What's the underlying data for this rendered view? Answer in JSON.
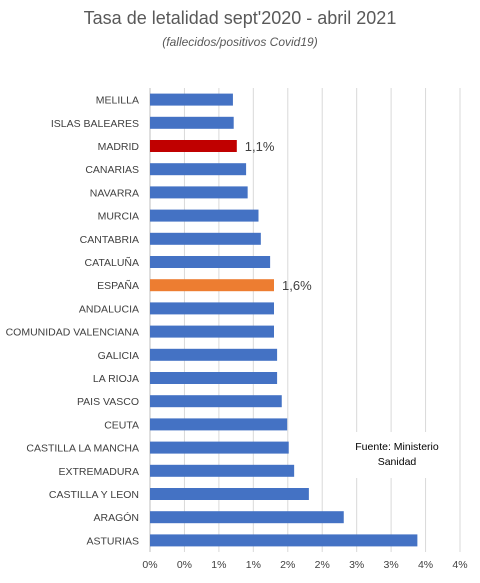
{
  "title": "Tasa de letalidad sept'2020 - abril 2021",
  "subtitle": "(fallecidos/positivos  Covid19)",
  "source": [
    "Fuente: Ministerio",
    "Sanidad"
  ],
  "colors": {
    "default": "#4472C4",
    "madrid": "#C00000",
    "espana": "#ED7D31",
    "grid": "#D9D9D9"
  },
  "chart_data": {
    "type": "bar",
    "orientation": "horizontal",
    "title": "Tasa de letalidad sept'2020 - abril 2021",
    "subtitle": "(fallecidos/positivos  Covid19)",
    "categories": [
      "MELILLA",
      "ISLAS BALEARES",
      "MADRID",
      "CANARIAS",
      "NAVARRA",
      "MURCIA",
      "CANTABRIA",
      "CATALUÑA",
      "ESPAÑA",
      "ANDALUCIA",
      "COMUNIDAD VALENCIANA",
      "GALICIA",
      "LA RIOJA",
      "PAIS VASCO",
      "CEUTA",
      "CASTILLA LA MANCHA",
      "EXTREMADURA",
      "CASTILLA Y LEON",
      "ARAGÓN",
      "ASTURIAS"
    ],
    "values": [
      1.07,
      1.08,
      1.12,
      1.24,
      1.26,
      1.4,
      1.43,
      1.55,
      1.6,
      1.6,
      1.6,
      1.64,
      1.64,
      1.7,
      1.77,
      1.79,
      1.86,
      2.05,
      2.5,
      3.45
    ],
    "highlight": {
      "MADRID": "madrid",
      "ESPAÑA": "espana"
    },
    "data_labels": {
      "MADRID": "1,1%",
      "ESPAÑA": "1,6%"
    },
    "xlim": [
      0,
      4
    ],
    "x_ticks": [
      "0%",
      "0%",
      "1%",
      "1%",
      "2%",
      "2%",
      "3%",
      "3%",
      "4%",
      "4%"
    ],
    "grid": true
  }
}
